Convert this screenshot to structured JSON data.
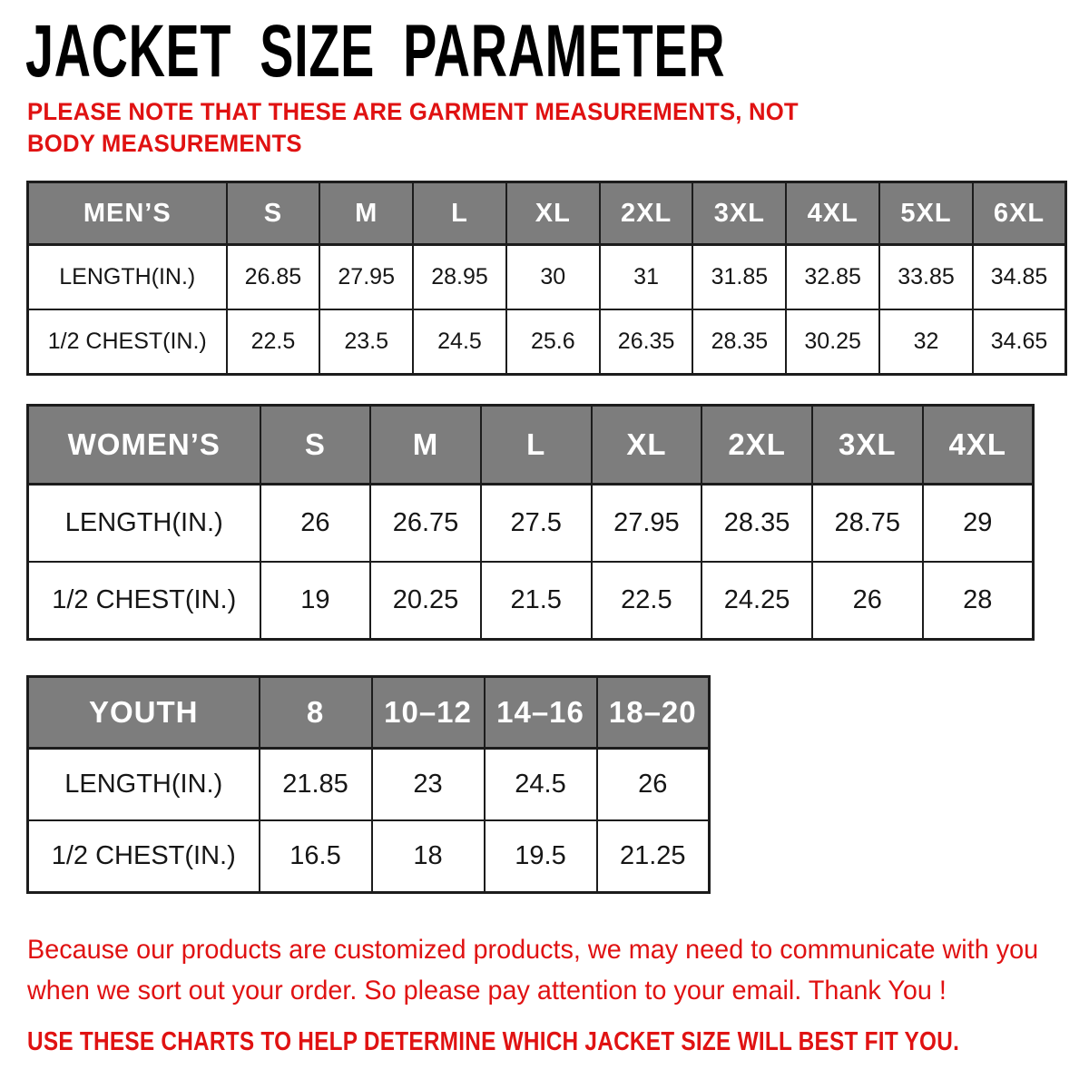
{
  "title": "JACKET SIZE PARAMETER",
  "note": "PLEASE NOTE THAT THESE ARE GARMENT MEASUREMENTS, NOT BODY MEASUREMENTS",
  "colors": {
    "accent_red": "#e01212",
    "header_gray": "#7d7d7d",
    "border_black": "#1c1c1c",
    "background": "#ffffff"
  },
  "tables": {
    "mens": {
      "label": "MEN’S",
      "sizes": [
        "S",
        "M",
        "L",
        "XL",
        "2XL",
        "3XL",
        "4XL",
        "5XL",
        "6XL"
      ],
      "rows": [
        {
          "label": "LENGTH(IN.)",
          "values": [
            "26.85",
            "27.95",
            "28.95",
            "30",
            "31",
            "31.85",
            "32.85",
            "33.85",
            "34.85"
          ]
        },
        {
          "label": "1/2 CHEST(IN.)",
          "values": [
            "22.5",
            "23.5",
            "24.5",
            "25.6",
            "26.35",
            "28.35",
            "30.25",
            "32",
            "34.65"
          ]
        }
      ]
    },
    "womens": {
      "label": "WOMEN’S",
      "sizes": [
        "S",
        "M",
        "L",
        "XL",
        "2XL",
        "3XL",
        "4XL"
      ],
      "rows": [
        {
          "label": "LENGTH(IN.)",
          "values": [
            "26",
            "26.75",
            "27.5",
            "27.95",
            "28.35",
            "28.75",
            "29"
          ]
        },
        {
          "label": "1/2 CHEST(IN.)",
          "values": [
            "19",
            "20.25",
            "21.5",
            "22.5",
            "24.25",
            "26",
            "28"
          ]
        }
      ]
    },
    "youth": {
      "label": "YOUTH",
      "sizes": [
        "8",
        "10–12",
        "14–16",
        "18–20"
      ],
      "rows": [
        {
          "label": "LENGTH(IN.)",
          "values": [
            "21.85",
            "23",
            "24.5",
            "26"
          ]
        },
        {
          "label": "1/2 CHEST(IN.)",
          "values": [
            "16.5",
            "18",
            "19.5",
            "21.25"
          ]
        }
      ]
    }
  },
  "footer": {
    "line1": "Because our products are customized products, we may need to communicate with you",
    "line2": "when we sort out your order. So please pay attention to your email. Thank You !",
    "line3": "USE THESE CHARTS TO HELP DETERMINE WHICH JACKET SIZE WILL BEST FIT YOU."
  }
}
